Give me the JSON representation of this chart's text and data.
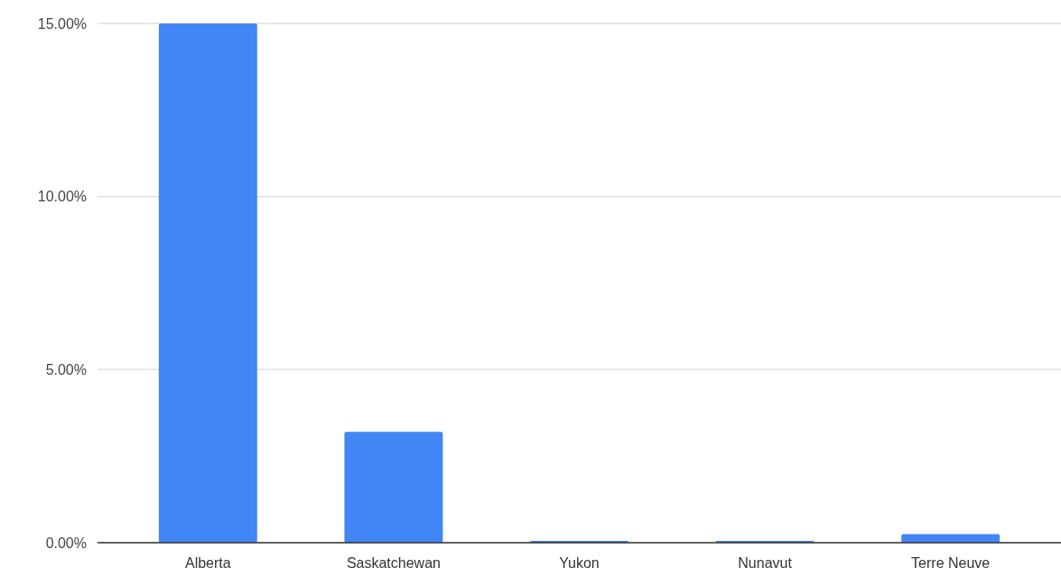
{
  "chart_data": {
    "type": "bar",
    "categories": [
      "Alberta",
      "Saskatchewan",
      "Yukon",
      "Nunavut",
      "Terre Neuve"
    ],
    "values": [
      15.0,
      3.2,
      0.05,
      0.05,
      0.25
    ],
    "color": "#4285f4",
    "ylim": [
      0,
      15
    ],
    "yticks": [
      {
        "value": 0,
        "label": "0.00%"
      },
      {
        "value": 5,
        "label": "5.00%"
      },
      {
        "value": 10,
        "label": "10.00%"
      },
      {
        "value": 15,
        "label": "15.00%"
      }
    ],
    "grid": "y"
  }
}
